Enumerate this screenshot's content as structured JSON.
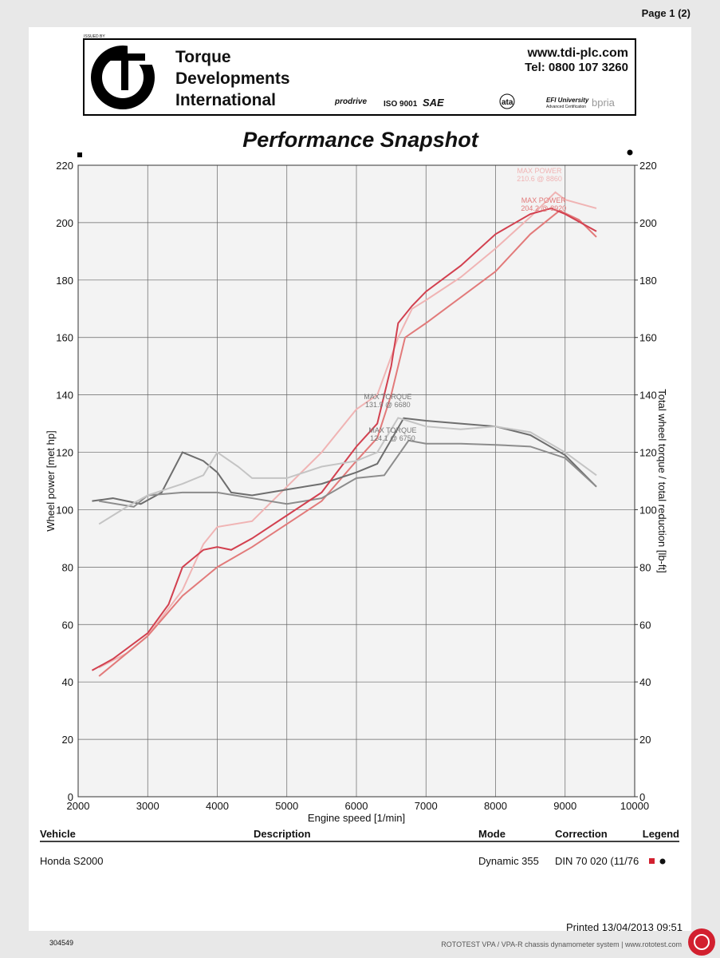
{
  "page": {
    "page_number": "Page 1 (2)",
    "issued_by": "ISSUED BY",
    "company": [
      "Torque",
      "Developments",
      "International"
    ],
    "website": "www.tdi-plc.com",
    "phone": "Tel: 0800 107 3260",
    "logos": [
      "prodrive",
      "ISO 9001",
      "SAE",
      "ata",
      "EFI University",
      "Advanced Certification",
      "bpria"
    ],
    "table": {
      "headers": [
        "Vehicle",
        "Description",
        "Mode",
        "Correction",
        "Legend"
      ],
      "row": [
        "Honda S2000",
        "Dynamic 355",
        "DIN 70 020 (11/76"
      ]
    },
    "printed": "Printed 13/04/2013 09:51",
    "doc_id": "304549",
    "footer": "ROTOTEST VPA / VPA-R chassis dynamometer system | www.rototest.com"
  },
  "chart_data": {
    "type": "line",
    "title": "Performance Snapshot",
    "xlabel": "Engine speed [1/min]",
    "ylabel": "Wheel power [met hp]",
    "y2label": "Total wheel torque / total reduction [lb-ft]",
    "xlim": [
      2000,
      10000
    ],
    "xticks": [
      2000,
      3000,
      4000,
      5000,
      6000,
      7000,
      8000,
      9000,
      10000
    ],
    "ylim": [
      0,
      220
    ],
    "yticks": [
      0,
      20,
      40,
      60,
      80,
      100,
      120,
      140,
      160,
      180,
      200,
      220
    ],
    "y2lim": [
      0,
      220
    ],
    "y2ticks": [
      0,
      20,
      40,
      60,
      80,
      100,
      120,
      140,
      160,
      180,
      200,
      220
    ],
    "grid": true,
    "annotations": [
      [
        "MAX POWER",
        "210.6 @ 8860"
      ],
      [
        "MAX POWER",
        "204.2 @ 8920"
      ],
      [
        "MAX TORQUE",
        "131.9 @ 6680"
      ],
      [
        "MAX TORQUE",
        "124.1 @ 6750"
      ]
    ],
    "series": [
      {
        "color": "#f0b4b4",
        "x": [
          2300,
          2700,
          3000,
          3500,
          3800,
          4000,
          4500,
          5000,
          5500,
          6000,
          6300,
          6600,
          6800,
          7000,
          7500,
          8000,
          8500,
          8860,
          9000,
          9450
        ],
        "values": [
          45,
          50,
          56,
          72,
          88,
          94,
          96,
          108,
          120,
          135,
          140,
          160,
          170,
          173,
          181,
          191,
          202,
          210.6,
          208,
          205
        ]
      },
      {
        "color": "#e27a7a",
        "x": [
          2300,
          2600,
          3000,
          3500,
          4000,
          4500,
          5000,
          5500,
          6000,
          6300,
          6500,
          6700,
          7000,
          7500,
          8000,
          8500,
          8920,
          9200,
          9450
        ],
        "values": [
          42,
          48,
          56,
          70,
          80,
          87,
          95,
          103,
          117,
          125,
          140,
          160,
          165,
          174,
          183,
          196,
          204.2,
          201,
          195
        ]
      },
      {
        "color": "#6e6e6e",
        "axis": "y2",
        "x": [
          2200,
          2500,
          2900,
          3200,
          3500,
          3800,
          4000,
          4200,
          4500,
          5000,
          5500,
          6000,
          6300,
          6680,
          7000,
          7500,
          8000,
          8500,
          9000,
          9450
        ],
        "values": [
          103,
          104,
          102,
          106,
          120,
          117,
          113,
          106,
          105,
          107,
          109,
          113,
          116,
          131.9,
          131,
          130,
          129,
          126,
          119,
          108
        ]
      },
      {
        "color": "#8c8c8c",
        "axis": "y2",
        "x": [
          2300,
          2800,
          3000,
          3500,
          4000,
          4500,
          5000,
          5500,
          6000,
          6400,
          6750,
          7000,
          7500,
          8000,
          8500,
          9000,
          9450
        ],
        "values": [
          103,
          101,
          105,
          106,
          106,
          104,
          102,
          104,
          111,
          112,
          124.1,
          123,
          123,
          122.6,
          122,
          118,
          108
        ]
      },
      {
        "color": "#d2404f",
        "x": [
          2200,
          2500,
          3000,
          3300,
          3500,
          3800,
          4000,
          4200,
          4500,
          5000,
          5500,
          6000,
          6300,
          6500,
          6600,
          6800,
          7000,
          7500,
          8000,
          8500,
          8800,
          9000,
          9450
        ],
        "values": [
          44,
          48,
          57,
          67,
          80,
          86,
          87,
          86,
          90,
          98,
          106,
          122,
          130,
          150,
          165,
          171,
          176,
          185,
          196,
          203,
          205,
          203,
          197
        ]
      },
      {
        "color": "#c4c4c4",
        "axis": "y2",
        "x": [
          2300,
          2700,
          3000,
          3500,
          3800,
          4000,
          4300,
          4500,
          5000,
          5500,
          6000,
          6300,
          6600,
          7000,
          7500,
          8000,
          8500,
          9000,
          9450
        ],
        "values": [
          95,
          101,
          105,
          109,
          112,
          120,
          115,
          111,
          111,
          115,
          117,
          120,
          132,
          129,
          128,
          129,
          127,
          120,
          112
        ]
      }
    ]
  }
}
